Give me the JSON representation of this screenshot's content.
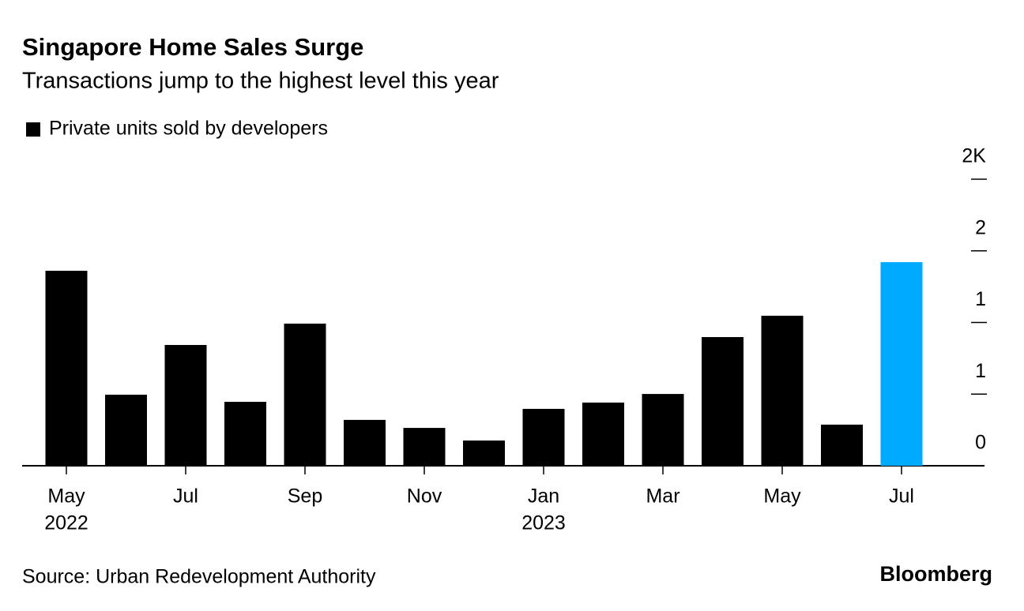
{
  "chart_data": {
    "type": "bar",
    "title": "Singapore Home Sales Surge",
    "subtitle": "Transactions jump to the highest level this year",
    "legend": "Private units sold by developers",
    "source": "Source: Urban Redevelopment Authority",
    "brand": "Bloomberg",
    "categories": [
      "May",
      null,
      "Jul",
      null,
      "Sep",
      null,
      "Nov",
      null,
      "Jan",
      null,
      "Mar",
      null,
      "May",
      null,
      "Jul"
    ],
    "year_labels": [
      "2022",
      null,
      null,
      null,
      null,
      null,
      null,
      null,
      "2023",
      null,
      null,
      null,
      null,
      null,
      null
    ],
    "values": [
      1361,
      496,
      843,
      446,
      992,
      320,
      264,
      176,
      397,
      441,
      501,
      898,
      1047,
      287,
      1421
    ],
    "colors": [
      "#000000",
      "#000000",
      "#000000",
      "#000000",
      "#000000",
      "#000000",
      "#000000",
      "#000000",
      "#000000",
      "#000000",
      "#000000",
      "#000000",
      "#000000",
      "#000000",
      "#00aaff"
    ],
    "ylim": [
      0,
      2000
    ],
    "yticks": [
      0,
      {
        "value": 500,
        "label": "1"
      },
      {
        "value": 1000,
        "label": "1"
      },
      {
        "value": 1500,
        "label": "2"
      },
      {
        "value": 2000,
        "label": "2K"
      }
    ]
  }
}
